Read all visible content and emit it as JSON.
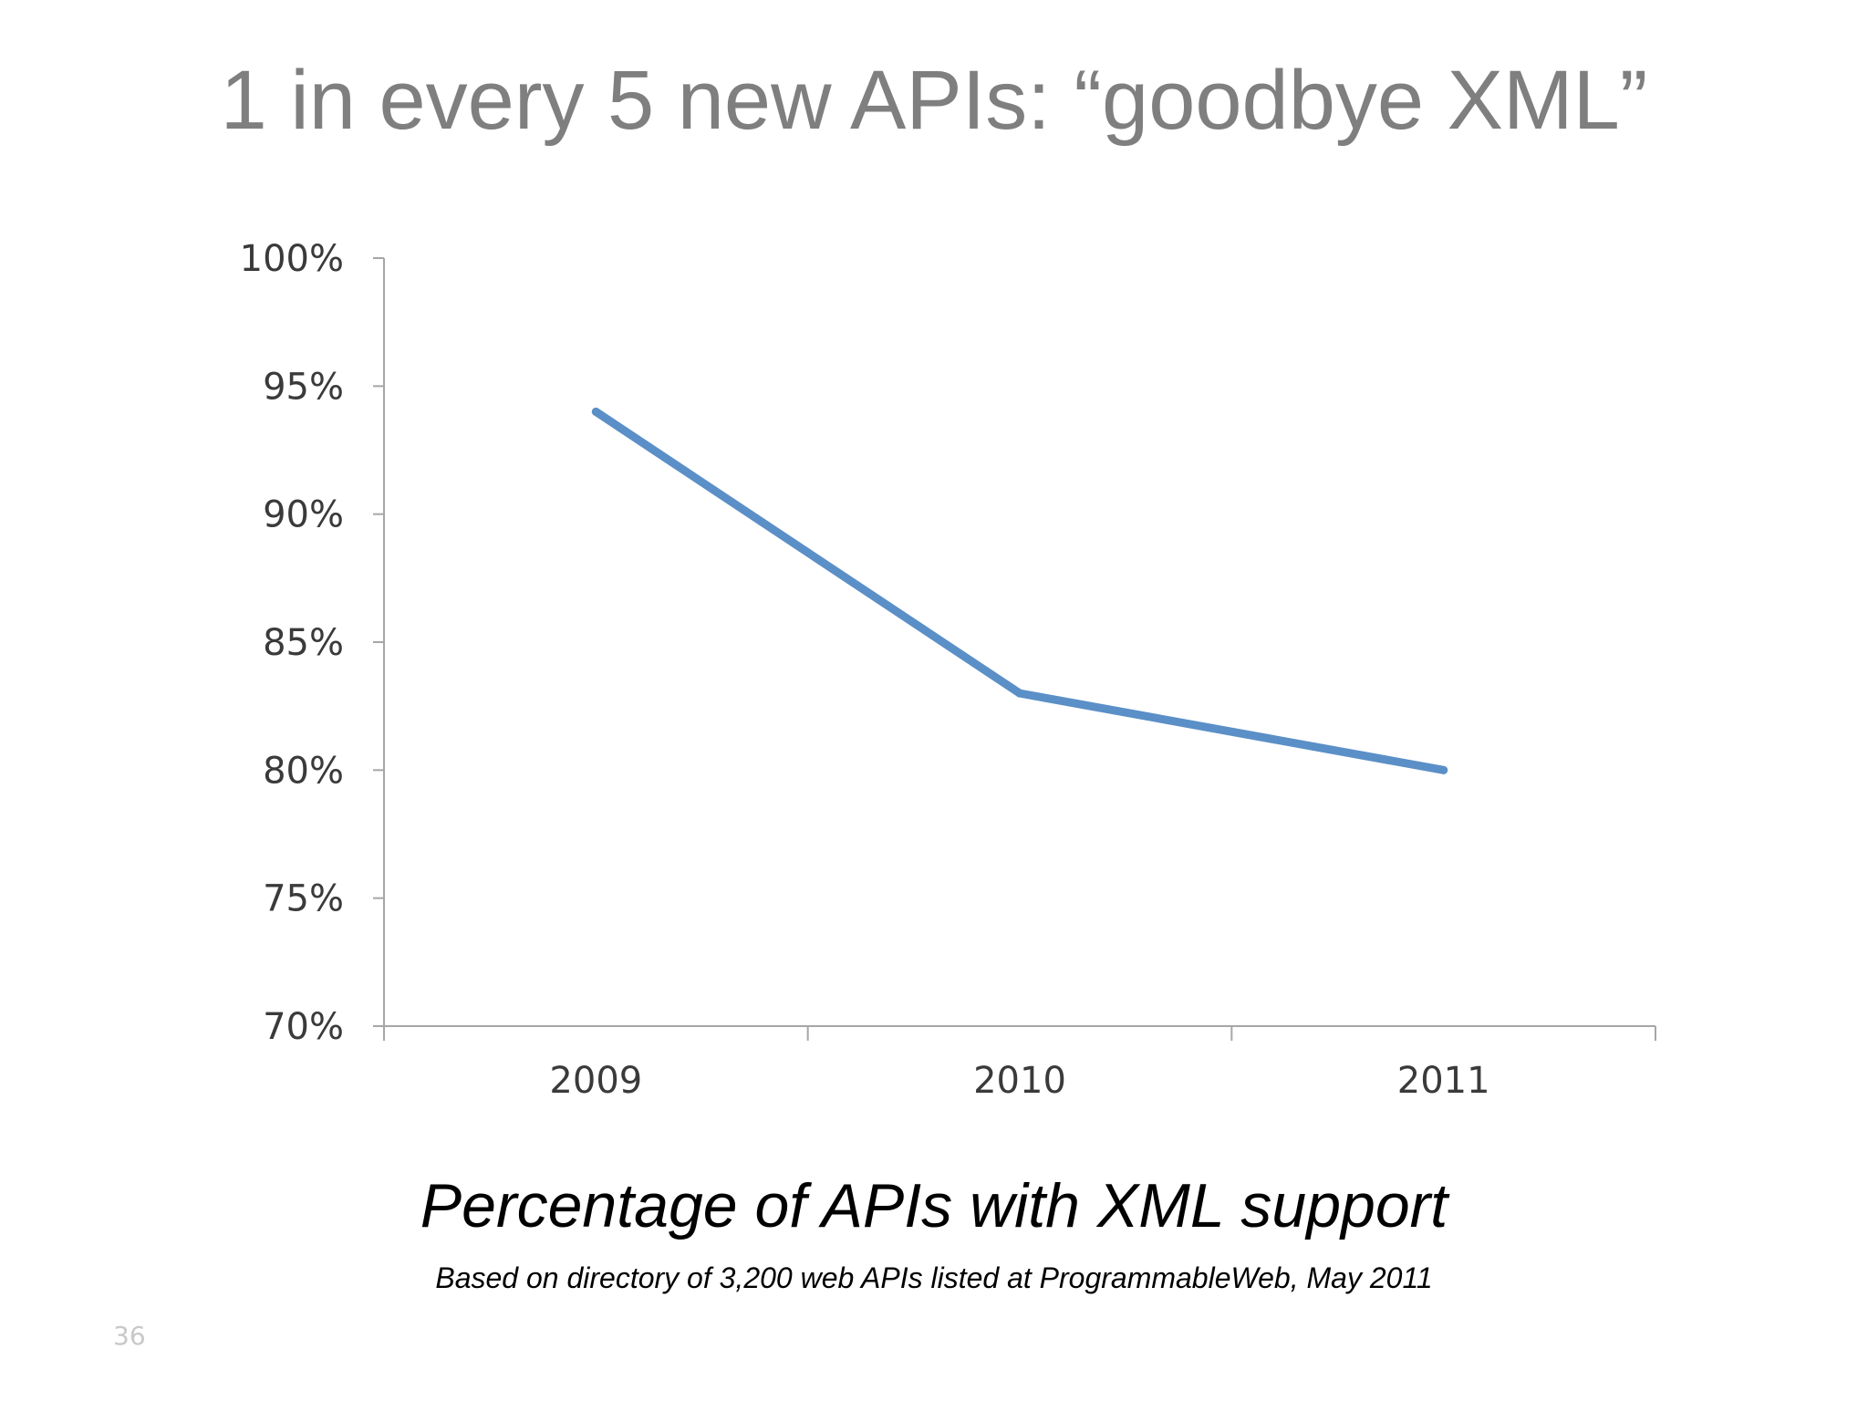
{
  "slide": {
    "title": "1 in every 5 new APIs: “goodbye XML”",
    "number": "36"
  },
  "caption": {
    "main": "Percentage of APIs with XML support",
    "source": "Based on directory of 3,200 web APIs listed at ProgrammableWeb, May 2011"
  },
  "chart_data": {
    "type": "line",
    "categories": [
      "2009",
      "2010",
      "2011"
    ],
    "series": [
      {
        "values": [
          94,
          83,
          80
        ],
        "color": "#5b8fc7"
      }
    ],
    "ylim": [
      70,
      100
    ],
    "yticks": [
      70,
      75,
      80,
      85,
      90,
      95,
      100
    ],
    "ytick_labels": [
      "70%",
      "75%",
      "80%",
      "85%",
      "90%",
      "95%",
      "100%"
    ],
    "grid": false,
    "axis_color": "#a6a6a6"
  }
}
